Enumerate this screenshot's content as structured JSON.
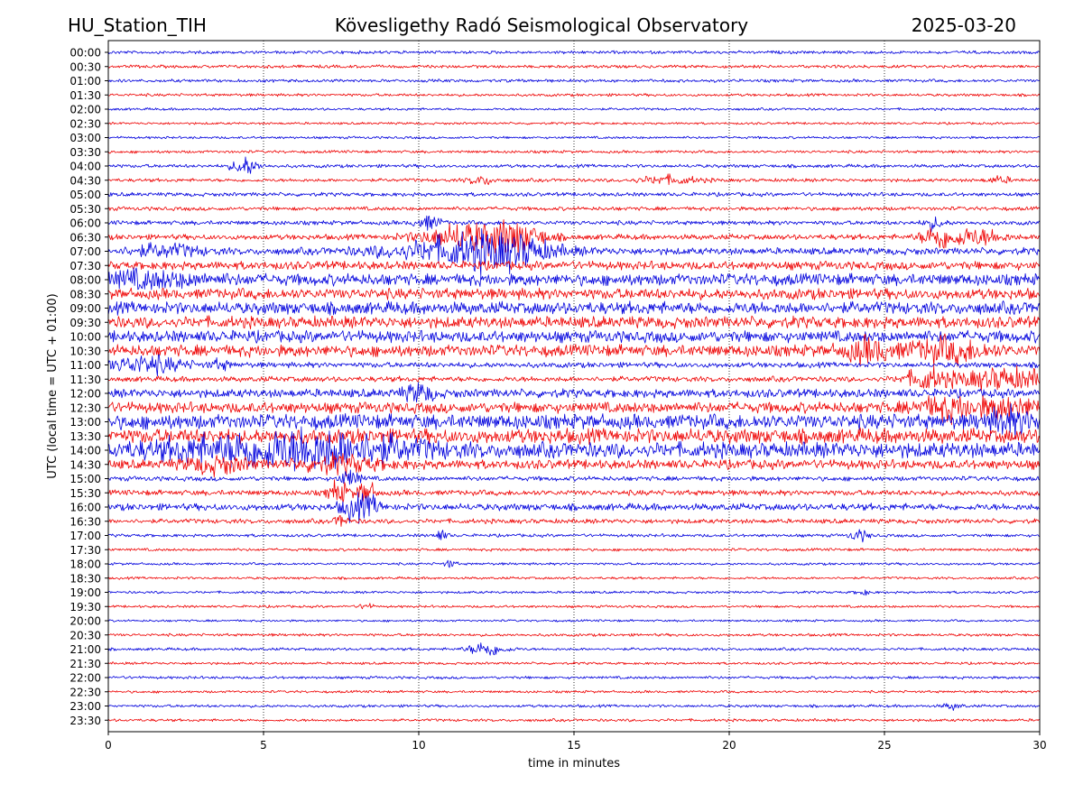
{
  "header": {
    "station": "HU_Station_TIH",
    "observatory": "Kövesligethy Radó Seismological Observatory",
    "date": "2025-03-20"
  },
  "chart_data": {
    "type": "line",
    "title": "Kövesligethy Radó Seismological Observatory",
    "xlabel": "time in minutes",
    "ylabel": "UTC (local time = UTC + 01:00)",
    "xlim": [
      0,
      30
    ],
    "x_ticks": [
      "0",
      "5",
      "10",
      "15",
      "20",
      "25",
      "30"
    ],
    "grid": "vertical dotted lines at 5-minute ticks",
    "series_colors": [
      "#0000dd",
      "#ee0000"
    ],
    "rows": [
      {
        "label": "00:00",
        "amp": 0.2,
        "events": []
      },
      {
        "label": "00:30",
        "amp": 0.2,
        "events": []
      },
      {
        "label": "01:00",
        "amp": 0.2,
        "events": []
      },
      {
        "label": "01:30",
        "amp": 0.18,
        "events": []
      },
      {
        "label": "02:00",
        "amp": 0.16,
        "events": []
      },
      {
        "label": "02:30",
        "amp": 0.15,
        "events": []
      },
      {
        "label": "03:00",
        "amp": 0.16,
        "events": []
      },
      {
        "label": "03:30",
        "amp": 0.18,
        "events": []
      },
      {
        "label": "04:00",
        "amp": 0.22,
        "events": [
          {
            "t": 4.4,
            "a": 1.2,
            "d": 0.4
          }
        ]
      },
      {
        "label": "04:30",
        "amp": 0.22,
        "events": [
          {
            "t": 12.0,
            "a": 0.6,
            "d": 0.4
          },
          {
            "t": 18.0,
            "a": 0.5,
            "d": 1.0
          },
          {
            "t": 28.7,
            "a": 0.4,
            "d": 0.4
          }
        ]
      },
      {
        "label": "05:00",
        "amp": 0.25,
        "events": []
      },
      {
        "label": "05:30",
        "amp": 0.25,
        "events": []
      },
      {
        "label": "06:00",
        "amp": 0.28,
        "events": [
          {
            "t": 10.3,
            "a": 0.9,
            "d": 0.4
          },
          {
            "t": 26.6,
            "a": 0.8,
            "d": 0.3
          }
        ]
      },
      {
        "label": "06:30",
        "amp": 0.35,
        "events": [
          {
            "t": 11.8,
            "a": 1.8,
            "d": 1.6
          },
          {
            "t": 13.2,
            "a": 1.2,
            "d": 0.8
          },
          {
            "t": 26.8,
            "a": 1.4,
            "d": 0.6
          },
          {
            "t": 28.0,
            "a": 1.0,
            "d": 0.8
          }
        ]
      },
      {
        "label": "07:00",
        "amp": 0.45,
        "events": [
          {
            "t": 1.8,
            "a": 0.7,
            "d": 1.2
          },
          {
            "t": 11.5,
            "a": 1.6,
            "d": 2.5
          },
          {
            "t": 12.8,
            "a": 1.2,
            "d": 1.2
          }
        ]
      },
      {
        "label": "07:30",
        "amp": 0.55,
        "events": []
      },
      {
        "label": "08:00",
        "amp": 0.75,
        "events": [
          {
            "t": 1.0,
            "a": 0.8,
            "d": 2.0
          }
        ]
      },
      {
        "label": "08:30",
        "amp": 0.7,
        "events": []
      },
      {
        "label": "09:00",
        "amp": 0.8,
        "events": []
      },
      {
        "label": "09:30",
        "amp": 0.75,
        "events": []
      },
      {
        "label": "10:00",
        "amp": 0.75,
        "events": []
      },
      {
        "label": "10:30",
        "amp": 0.75,
        "events": [
          {
            "t": 24.5,
            "a": 1.3,
            "d": 0.8
          },
          {
            "t": 27.0,
            "a": 1.3,
            "d": 1.2
          }
        ]
      },
      {
        "label": "11:00",
        "amp": 0.35,
        "events": [
          {
            "t": 1.2,
            "a": 1.1,
            "d": 1.2
          },
          {
            "t": 3.6,
            "a": 0.6,
            "d": 0.3
          }
        ]
      },
      {
        "label": "11:30",
        "amp": 0.35,
        "events": [
          {
            "t": 26.3,
            "a": 1.2,
            "d": 0.6
          },
          {
            "t": 28.8,
            "a": 1.3,
            "d": 1.8
          }
        ]
      },
      {
        "label": "12:00",
        "amp": 0.55,
        "events": [
          {
            "t": 10.0,
            "a": 1.0,
            "d": 0.5
          }
        ]
      },
      {
        "label": "12:30",
        "amp": 0.7,
        "events": [
          {
            "t": 27.0,
            "a": 1.2,
            "d": 1.0
          },
          {
            "t": 29.0,
            "a": 1.1,
            "d": 1.0
          }
        ]
      },
      {
        "label": "13:00",
        "amp": 0.95,
        "events": [
          {
            "t": 29.0,
            "a": 1.2,
            "d": 0.8
          }
        ]
      },
      {
        "label": "13:30",
        "amp": 0.95,
        "events": []
      },
      {
        "label": "14:00",
        "amp": 1.0,
        "events": [
          {
            "t": 4.5,
            "a": 1.4,
            "d": 3.0
          },
          {
            "t": 7.5,
            "a": 1.5,
            "d": 2.5
          }
        ]
      },
      {
        "label": "14:30",
        "amp": 0.6,
        "events": [
          {
            "t": 3.5,
            "a": 0.9,
            "d": 1.0
          },
          {
            "t": 7.5,
            "a": 0.9,
            "d": 1.2
          }
        ]
      },
      {
        "label": "15:00",
        "amp": 0.3,
        "events": [
          {
            "t": 7.8,
            "a": 1.3,
            "d": 0.3
          }
        ]
      },
      {
        "label": "15:30",
        "amp": 0.35,
        "events": [
          {
            "t": 7.4,
            "a": 1.5,
            "d": 0.3
          },
          {
            "t": 8.3,
            "a": 1.4,
            "d": 0.3
          }
        ]
      },
      {
        "label": "16:00",
        "amp": 0.45,
        "events": [
          {
            "t": 7.9,
            "a": 1.5,
            "d": 0.4
          },
          {
            "t": 8.5,
            "a": 1.0,
            "d": 0.3
          }
        ]
      },
      {
        "label": "16:30",
        "amp": 0.3,
        "events": [
          {
            "t": 7.5,
            "a": 0.8,
            "d": 0.2
          }
        ]
      },
      {
        "label": "17:00",
        "amp": 0.2,
        "events": [
          {
            "t": 10.7,
            "a": 0.7,
            "d": 0.2
          },
          {
            "t": 24.2,
            "a": 0.7,
            "d": 0.3
          }
        ]
      },
      {
        "label": "17:30",
        "amp": 0.18,
        "events": []
      },
      {
        "label": "18:00",
        "amp": 0.16,
        "events": [
          {
            "t": 11.0,
            "a": 0.5,
            "d": 0.2
          }
        ]
      },
      {
        "label": "18:30",
        "amp": 0.16,
        "events": []
      },
      {
        "label": "19:00",
        "amp": 0.16,
        "events": [
          {
            "t": 24.3,
            "a": 0.4,
            "d": 0.2
          }
        ]
      },
      {
        "label": "19:30",
        "amp": 0.16,
        "events": [
          {
            "t": 8.3,
            "a": 0.4,
            "d": 0.2
          }
        ]
      },
      {
        "label": "20:00",
        "amp": 0.14,
        "events": []
      },
      {
        "label": "20:30",
        "amp": 0.18,
        "events": []
      },
      {
        "label": "21:00",
        "amp": 0.18,
        "events": [
          {
            "t": 12.2,
            "a": 0.9,
            "d": 0.6
          }
        ]
      },
      {
        "label": "21:30",
        "amp": 0.16,
        "events": []
      },
      {
        "label": "22:00",
        "amp": 0.18,
        "events": []
      },
      {
        "label": "22:30",
        "amp": 0.16,
        "events": []
      },
      {
        "label": "23:00",
        "amp": 0.18,
        "events": [
          {
            "t": 27.2,
            "a": 0.4,
            "d": 0.3
          }
        ]
      },
      {
        "label": "23:30",
        "amp": 0.18,
        "events": []
      }
    ]
  }
}
